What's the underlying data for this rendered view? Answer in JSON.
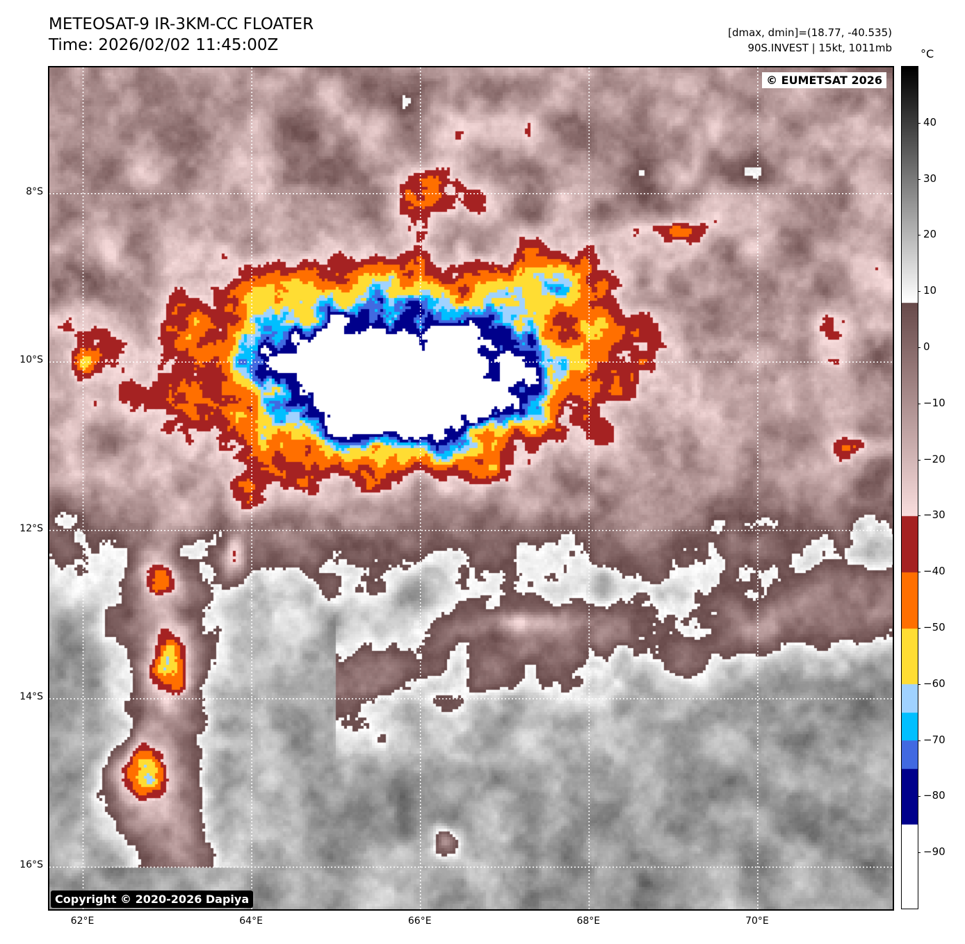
{
  "header": {
    "title": "METEOSAT-9 IR-3KM-CC FLOATER",
    "time": "Time: 2026/02/02 11:45:00Z",
    "range": "[dmax, dmin]=(18.77, -40.535)",
    "storm": "90S.INVEST | 15kt, 1011mb"
  },
  "map": {
    "lon_range": [
      61.6,
      71.6
    ],
    "lat_range": [
      -6.5,
      -16.5
    ],
    "lat_ticks": [
      {
        "v": -8,
        "label": "8°S"
      },
      {
        "v": -10,
        "label": "10°S"
      },
      {
        "v": -12,
        "label": "12°S"
      },
      {
        "v": -14,
        "label": "14°S"
      },
      {
        "v": -16,
        "label": "16°S"
      }
    ],
    "lon_ticks": [
      {
        "v": 62,
        "label": "62°E"
      },
      {
        "v": 64,
        "label": "64°E"
      },
      {
        "v": 66,
        "label": "66°E"
      },
      {
        "v": 68,
        "label": "68°E"
      },
      {
        "v": 70,
        "label": "70°E"
      }
    ],
    "watermark": "© EUMETSAT 2026",
    "copyright": "Copyright © 2020-2026 Dapiya"
  },
  "colorbar": {
    "unit": "°C",
    "range": [
      -100,
      50
    ],
    "ticks": [
      "40",
      "30",
      "20",
      "10",
      "0",
      "−10",
      "−20",
      "−30",
      "−40",
      "−50",
      "−60",
      "−70",
      "−80",
      "−90"
    ],
    "tick_values": [
      40,
      30,
      20,
      10,
      0,
      -10,
      -20,
      -30,
      -40,
      -50,
      -60,
      -70,
      -80,
      -90
    ],
    "segments": [
      {
        "from": -30,
        "to": -40,
        "color": "#a52222"
      },
      {
        "from": -40,
        "to": -50,
        "color": "#ff6f00"
      },
      {
        "from": -50,
        "to": -60,
        "color": "#ffdd33"
      },
      {
        "from": -60,
        "to": -65,
        "color": "#a0d2ff"
      },
      {
        "from": -65,
        "to": -70,
        "color": "#00bfff"
      },
      {
        "from": -70,
        "to": -75,
        "color": "#4169e1"
      },
      {
        "from": -75,
        "to": -85,
        "color": "#00008b"
      }
    ]
  }
}
